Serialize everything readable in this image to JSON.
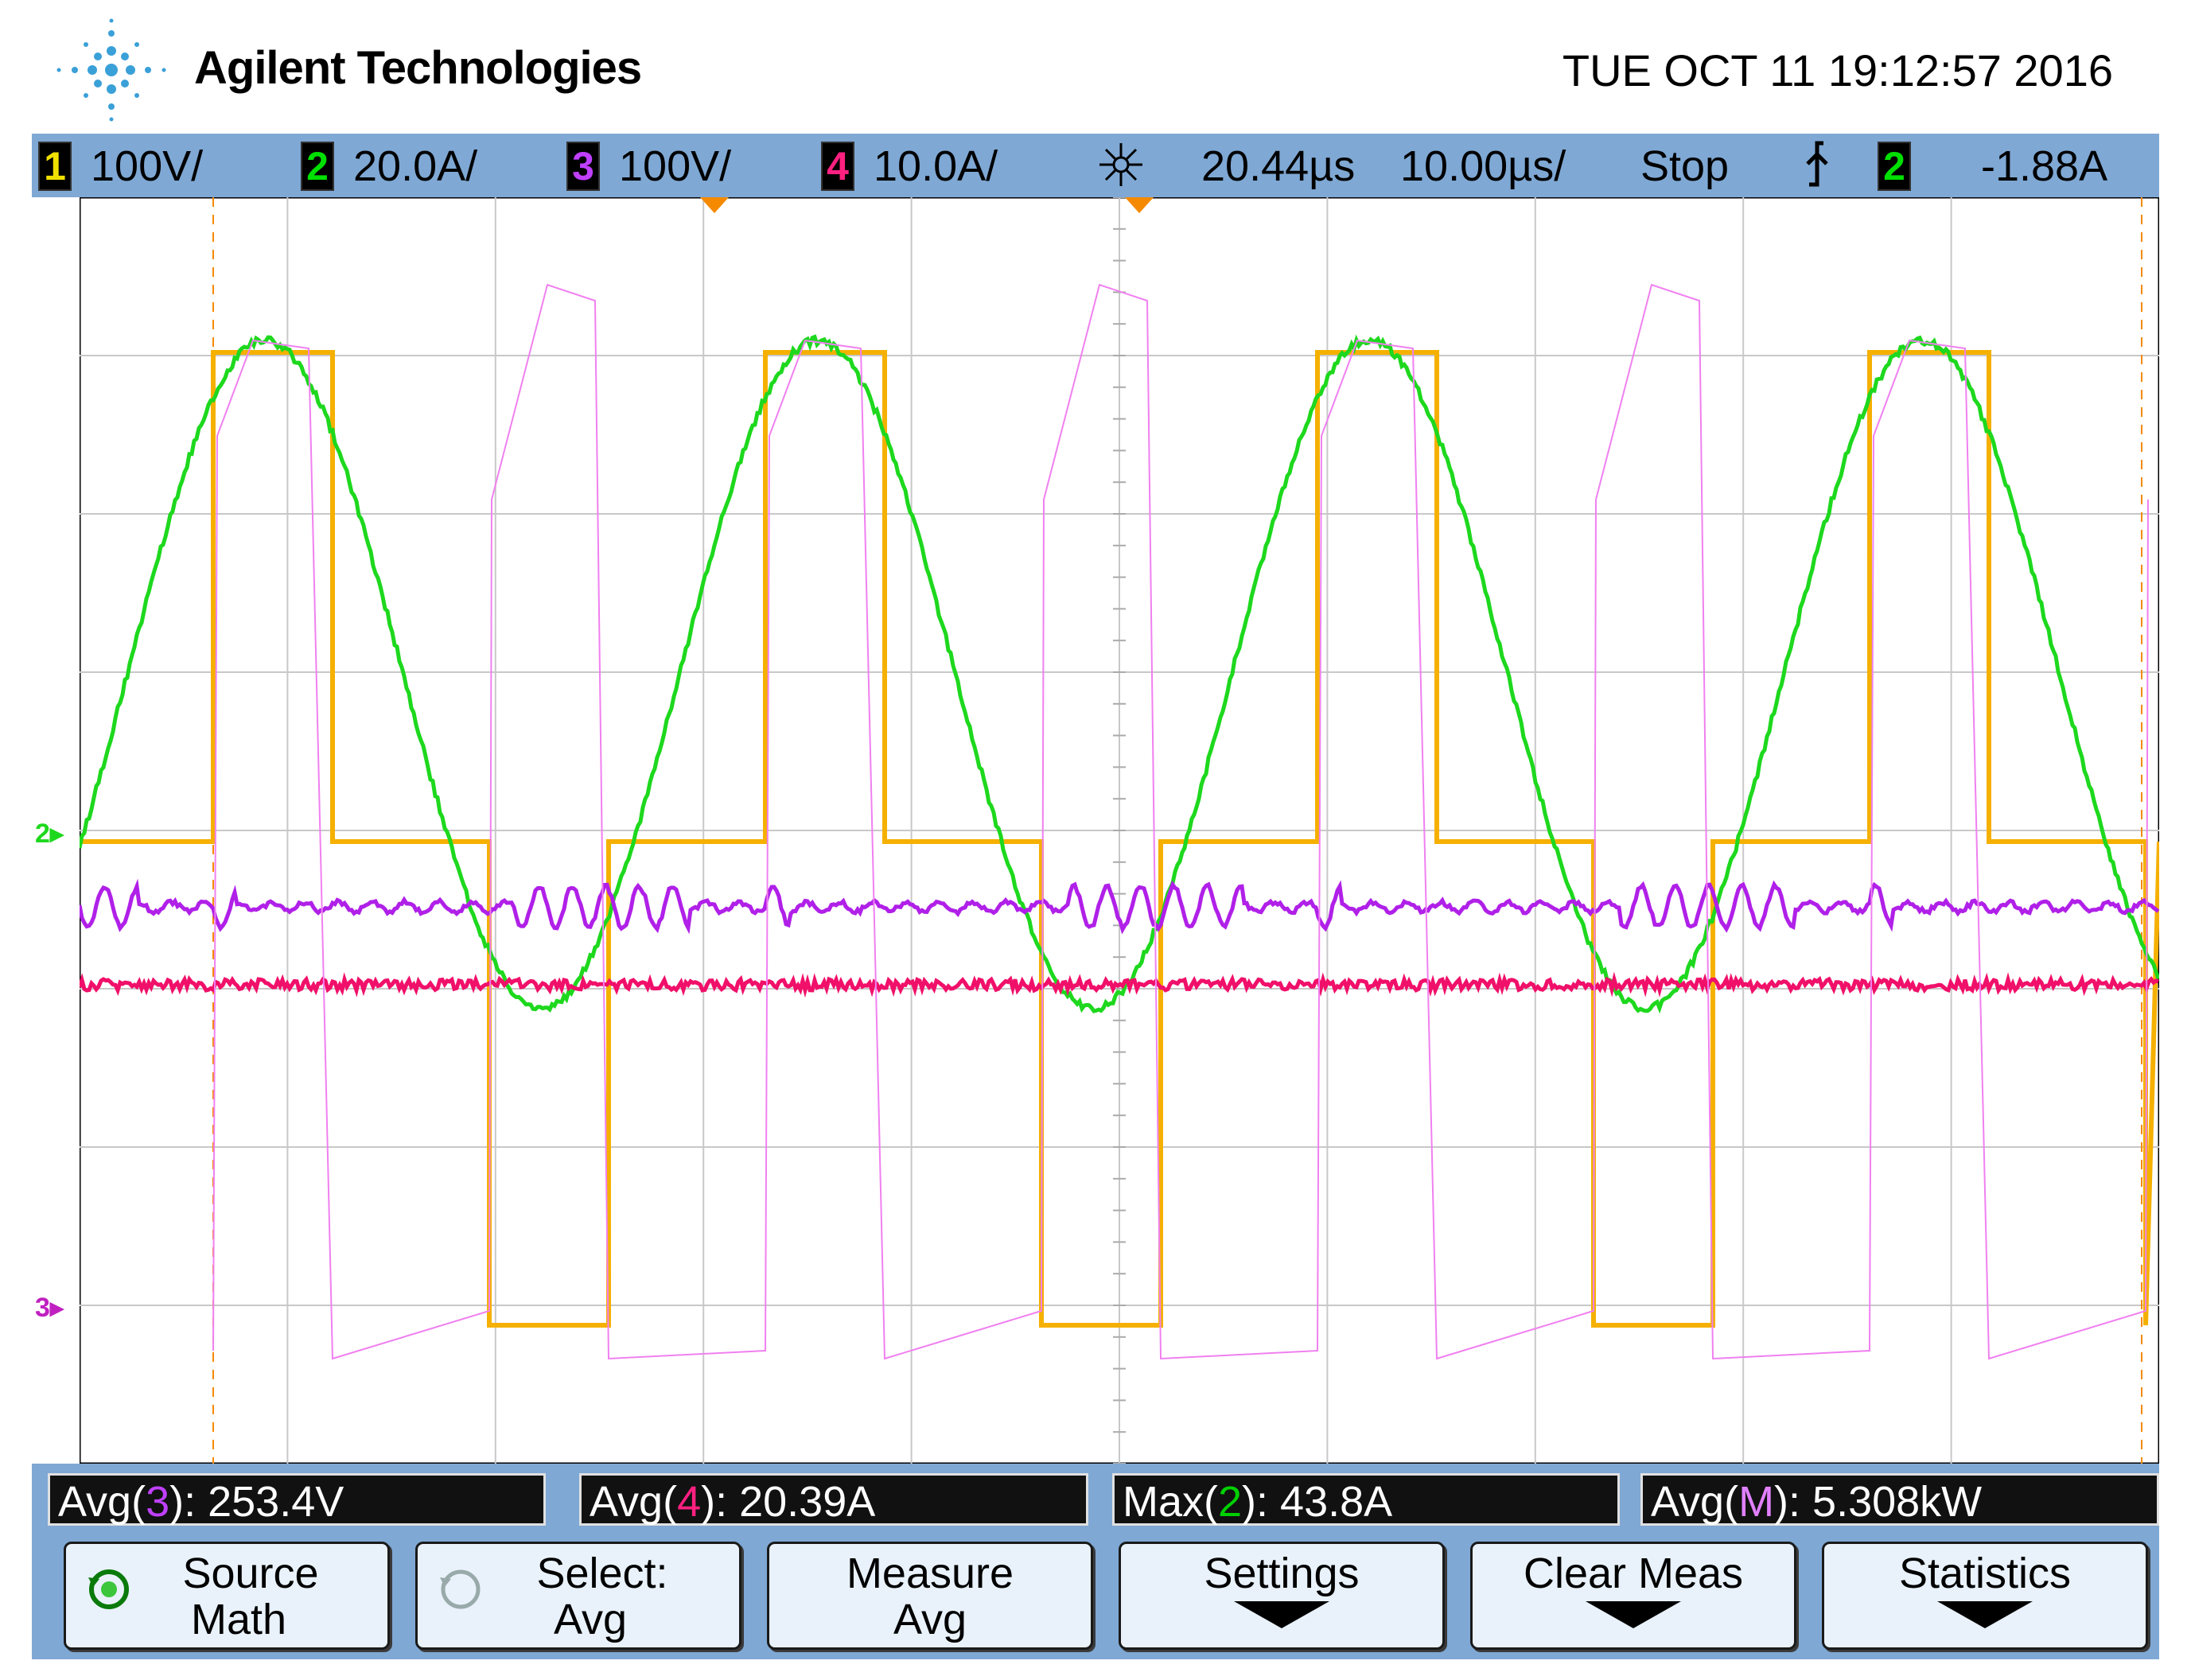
{
  "header": {
    "brand": "Agilent Technologies",
    "datetime": "TUE OCT 11 19:12:57 2016"
  },
  "status": {
    "channels": [
      {
        "num": "1",
        "scale": "100V/",
        "color": "#f0c000"
      },
      {
        "num": "2",
        "scale": "20.0A/",
        "color": "#00d000"
      },
      {
        "num": "3",
        "scale": "100V/",
        "color": "#c040ff"
      },
      {
        "num": "4",
        "scale": "10.0A/",
        "color": "#ff2080"
      }
    ],
    "delay": "20.44µs",
    "timebase": "10.00µs/",
    "run_state": "Stop",
    "trigger_channel": "2",
    "trigger_level": "-1.88A"
  },
  "measurements": [
    {
      "prefix": "Avg(",
      "src": "3",
      "src_color": "#c040ff",
      "suffix": "): 253.4V"
    },
    {
      "prefix": "Avg(",
      "src": "4",
      "src_color": "#ff2080",
      "suffix": "): 20.39A"
    },
    {
      "prefix": "Max(",
      "src": "2",
      "src_color": "#00d000",
      "suffix": "): 43.8A"
    },
    {
      "prefix": "Avg(",
      "src": "M",
      "src_color": "#e080ff",
      "suffix": "): 5.308kW"
    }
  ],
  "softkeys": [
    {
      "line1": "Source",
      "line2": "Math",
      "knob": true,
      "arrow": false
    },
    {
      "line1": "Select:",
      "line2": "Avg",
      "knob": true,
      "arrow": false
    },
    {
      "line1": "Measure",
      "line2": "Avg",
      "knob": false,
      "arrow": false
    },
    {
      "line1": "Settings",
      "line2": "",
      "knob": false,
      "arrow": true
    },
    {
      "line1": "Clear Meas",
      "line2": "",
      "knob": false,
      "arrow": true
    },
    {
      "line1": "Statistics",
      "line2": "",
      "knob": false,
      "arrow": true
    }
  ],
  "markers": {
    "ch2_marker": "2",
    "ch3_marker": "3"
  },
  "colors": {
    "ch1": "#f5b000",
    "ch2": "#1ed81e",
    "ch3": "#b020e8",
    "ch4": "#f0106a",
    "math": "#f080f0",
    "grid": "#c8c8c8",
    "statusbar": "#7fa8d4"
  }
}
